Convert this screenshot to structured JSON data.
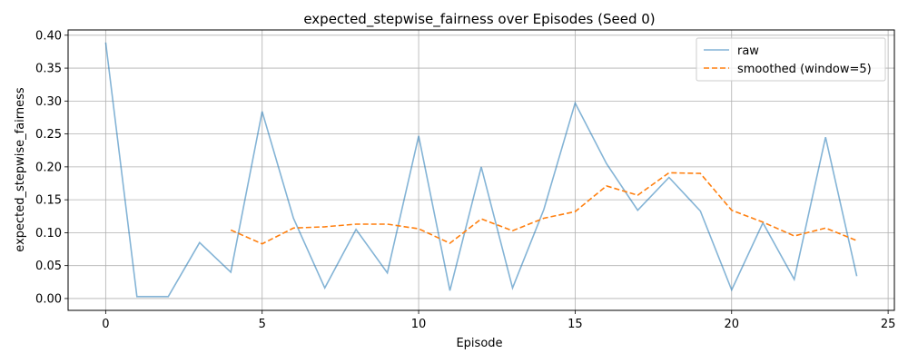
{
  "chart_data": {
    "type": "line",
    "title": "expected_stepwise_fairness over Episodes (Seed 0)",
    "xlabel": "Episode",
    "ylabel": "expected_stepwise_fairness",
    "xlim": [
      -1.2,
      25.2
    ],
    "ylim": [
      -0.018,
      0.408
    ],
    "xticks": [
      0,
      5,
      10,
      15,
      20,
      25
    ],
    "yticks": [
      0.0,
      0.05,
      0.1,
      0.15,
      0.2,
      0.25,
      0.3,
      0.35,
      0.4
    ],
    "grid": true,
    "legend_position": "top-right",
    "series": [
      {
        "name": "raw",
        "color": "#1f77b4",
        "style": "solid",
        "x": [
          0,
          1,
          2,
          3,
          4,
          5,
          6,
          7,
          8,
          9,
          10,
          11,
          12,
          13,
          14,
          15,
          16,
          17,
          18,
          19,
          20,
          21,
          22,
          23,
          24
        ],
        "y": [
          0.389,
          0.003,
          0.003,
          0.085,
          0.04,
          0.284,
          0.122,
          0.016,
          0.105,
          0.039,
          0.247,
          0.012,
          0.2,
          0.016,
          0.135,
          0.297,
          0.205,
          0.134,
          0.184,
          0.133,
          0.013,
          0.115,
          0.029,
          0.245,
          0.034
        ]
      },
      {
        "name": "smoothed (window=5)",
        "color": "#ff7f0e",
        "style": "dashed",
        "x": [
          4,
          5,
          6,
          7,
          8,
          9,
          10,
          11,
          12,
          13,
          14,
          15,
          16,
          17,
          18,
          19,
          20,
          21,
          22,
          23,
          24
        ],
        "y": [
          0.104,
          0.083,
          0.107,
          0.109,
          0.113,
          0.113,
          0.106,
          0.084,
          0.121,
          0.103,
          0.122,
          0.132,
          0.171,
          0.157,
          0.191,
          0.19,
          0.134,
          0.116,
          0.095,
          0.107,
          0.088
        ]
      }
    ]
  }
}
